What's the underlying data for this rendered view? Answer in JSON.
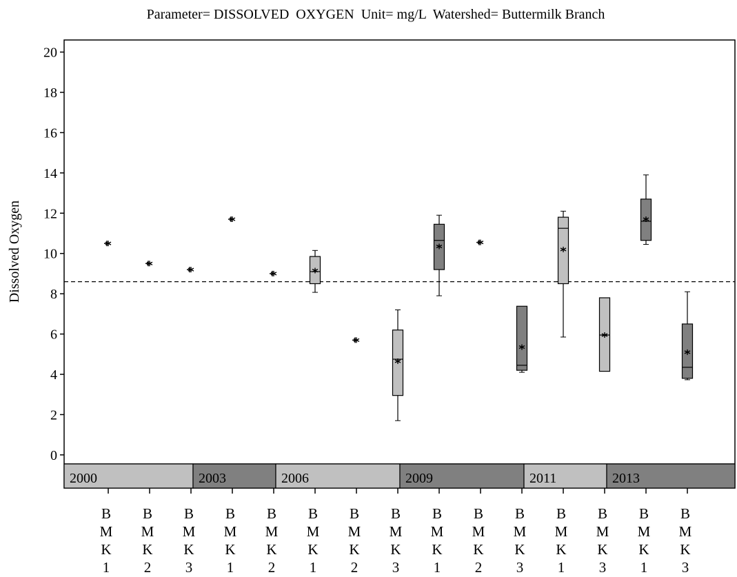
{
  "chart_data": {
    "type": "box",
    "title": "Parameter= DISSOLVED  OXYGEN  Unit= mg/L  Watershed= Buttermilk Branch",
    "y_label": "Dissolved Oxygen",
    "ylim": [
      -0.45,
      20.6
    ],
    "yticks": [
      0,
      2,
      4,
      6,
      8,
      10,
      12,
      14,
      16,
      18,
      20
    ],
    "reference_line": 8.6,
    "blocks": [
      {
        "label": "2000",
        "color": "#c0c0c0",
        "groups": [
          {
            "category": "BMK1",
            "min": 10.5,
            "q1": 10.5,
            "median": 10.5,
            "q3": 10.5,
            "max": 10.5,
            "mean": 10.5
          },
          {
            "category": "BMK2",
            "min": 9.5,
            "q1": 9.5,
            "median": 9.5,
            "q3": 9.5,
            "max": 9.5,
            "mean": 9.5
          },
          {
            "category": "BMK3",
            "min": 9.2,
            "q1": 9.2,
            "median": 9.2,
            "q3": 9.2,
            "max": 9.2,
            "mean": 9.2
          }
        ]
      },
      {
        "label": "2003",
        "color": "#808080",
        "groups": [
          {
            "category": "BMK1",
            "min": 11.7,
            "q1": 11.7,
            "median": 11.7,
            "q3": 11.7,
            "max": 11.7,
            "mean": 11.7
          },
          {
            "category": "BMK2",
            "min": 9.0,
            "q1": 9.0,
            "median": 9.0,
            "q3": 9.0,
            "max": 9.0,
            "mean": 9.0
          }
        ]
      },
      {
        "label": "2006",
        "color": "#c0c0c0",
        "groups": [
          {
            "category": "BMK1",
            "min": 8.07,
            "q1": 8.5,
            "median": 9.1,
            "q3": 9.85,
            "max": 10.15,
            "mean": 9.15
          },
          {
            "category": "BMK2",
            "min": 5.7,
            "q1": 5.7,
            "median": 5.7,
            "q3": 5.7,
            "max": 5.7,
            "mean": 5.7
          },
          {
            "category": "BMK3",
            "min": 1.7,
            "q1": 2.95,
            "median": 4.75,
            "q3": 6.2,
            "max": 7.2,
            "mean": 4.65
          }
        ]
      },
      {
        "label": "2009",
        "color": "#808080",
        "groups": [
          {
            "category": "BMK1",
            "min": 7.9,
            "q1": 9.2,
            "median": 10.65,
            "q3": 11.45,
            "max": 11.9,
            "mean": 10.35
          },
          {
            "category": "BMK2",
            "min": 10.55,
            "q1": 10.55,
            "median": 10.55,
            "q3": 10.55,
            "max": 10.55,
            "mean": 10.55
          },
          {
            "category": "BMK3",
            "min": 4.1,
            "q1": 4.2,
            "median": 4.45,
            "q3": 7.38,
            "max": 7.38,
            "mean": 5.35
          }
        ]
      },
      {
        "label": "2011",
        "color": "#c0c0c0",
        "groups": [
          {
            "category": "BMK1",
            "min": 5.85,
            "q1": 8.5,
            "median": 11.25,
            "q3": 11.8,
            "max": 12.1,
            "mean": 10.2
          },
          {
            "category": "BMK3",
            "min": 4.15,
            "q1": 4.15,
            "median": 5.95,
            "q3": 7.8,
            "max": 7.8,
            "mean": 5.95
          }
        ]
      },
      {
        "label": "2013",
        "color": "#808080",
        "groups": [
          {
            "category": "BMK1",
            "min": 10.45,
            "q1": 10.65,
            "median": 11.6,
            "q3": 12.7,
            "max": 13.9,
            "mean": 11.7
          },
          {
            "category": "BMK3",
            "min": 3.73,
            "q1": 3.8,
            "median": 4.35,
            "q3": 6.5,
            "max": 8.1,
            "mean": 5.1
          }
        ]
      }
    ]
  }
}
